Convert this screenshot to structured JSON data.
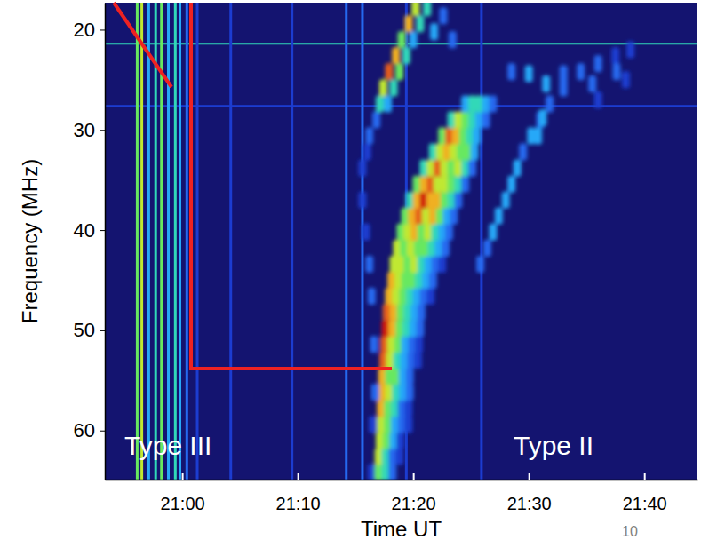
{
  "chart_data": {
    "type": "heatmap",
    "x_label": "Time UT",
    "y_label": "Frequency (MHz)",
    "xlim": [
      -6.7,
      44.6
    ],
    "xticks": [
      {
        "value": 0,
        "label": "21:00"
      },
      {
        "value": 10,
        "label": "21:10"
      },
      {
        "value": 20,
        "label": "21:20"
      },
      {
        "value": 30,
        "label": "21:30"
      },
      {
        "value": 40,
        "label": "21:40"
      }
    ],
    "ylim": [
      64.9,
      17.3
    ],
    "yticks": [
      20,
      30,
      40,
      50,
      60
    ],
    "color_range": [
      0,
      10
    ],
    "horizontal_lines": [
      [
        21.4,
        5
      ],
      [
        27.6,
        2
      ]
    ],
    "vertical_bursts": [
      [
        -3.9,
        6
      ],
      [
        -3.5,
        7
      ],
      [
        -2.9,
        4
      ],
      [
        -2.3,
        5
      ],
      [
        -1.8,
        6
      ],
      [
        -1.2,
        4
      ],
      [
        -0.6,
        5
      ],
      [
        -0.2,
        4
      ],
      [
        0.4,
        3
      ],
      [
        1.3,
        2
      ],
      [
        4.2,
        2
      ],
      [
        9.5,
        2
      ],
      [
        14.2,
        3
      ],
      [
        15.6,
        3
      ],
      [
        19.4,
        2
      ],
      [
        25.9,
        2
      ]
    ],
    "cells": [
      [
        16.4,
        64.2,
        2
      ],
      [
        17.0,
        64.2,
        6
      ],
      [
        17.6,
        64.2,
        5
      ],
      [
        18.2,
        64.2,
        3
      ],
      [
        17.0,
        62.6,
        7
      ],
      [
        17.6,
        62.6,
        5
      ],
      [
        18.2,
        62.6,
        3
      ],
      [
        18.8,
        62.6,
        2
      ],
      [
        17.1,
        61.0,
        7
      ],
      [
        17.7,
        61.0,
        6
      ],
      [
        18.3,
        61.0,
        4
      ],
      [
        18.9,
        61.0,
        2
      ],
      [
        17.2,
        59.4,
        7
      ],
      [
        17.8,
        59.4,
        6
      ],
      [
        18.4,
        59.4,
        4
      ],
      [
        19.0,
        59.4,
        3
      ],
      [
        19.6,
        59.4,
        2
      ],
      [
        17.2,
        57.8,
        8
      ],
      [
        17.8,
        57.8,
        6
      ],
      [
        18.4,
        57.8,
        5
      ],
      [
        19.0,
        57.8,
        3
      ],
      [
        19.6,
        57.8,
        2
      ],
      [
        17.3,
        56.2,
        8
      ],
      [
        17.9,
        56.2,
        7
      ],
      [
        18.5,
        56.2,
        5
      ],
      [
        19.1,
        56.2,
        4
      ],
      [
        19.7,
        56.2,
        3
      ],
      [
        17.3,
        54.6,
        8
      ],
      [
        17.9,
        54.6,
        6
      ],
      [
        18.5,
        54.6,
        6
      ],
      [
        19.1,
        54.6,
        4
      ],
      [
        19.7,
        54.6,
        3
      ],
      [
        17.4,
        53.0,
        9
      ],
      [
        18.0,
        53.0,
        7
      ],
      [
        18.6,
        53.0,
        5
      ],
      [
        19.2,
        53.0,
        4
      ],
      [
        19.8,
        53.0,
        3
      ],
      [
        20.4,
        53.0,
        2
      ],
      [
        17.5,
        51.4,
        9
      ],
      [
        18.1,
        51.4,
        7
      ],
      [
        18.7,
        51.4,
        6
      ],
      [
        19.3,
        51.4,
        4
      ],
      [
        19.9,
        51.4,
        3
      ],
      [
        20.5,
        51.4,
        2
      ],
      [
        17.6,
        49.8,
        10
      ],
      [
        18.2,
        49.8,
        8
      ],
      [
        18.8,
        49.8,
        6
      ],
      [
        19.4,
        49.8,
        5
      ],
      [
        20.0,
        49.8,
        4
      ],
      [
        20.6,
        49.8,
        3
      ],
      [
        17.7,
        48.2,
        9
      ],
      [
        18.3,
        48.2,
        8
      ],
      [
        18.9,
        48.2,
        6
      ],
      [
        19.5,
        48.2,
        5
      ],
      [
        20.1,
        48.2,
        4
      ],
      [
        20.7,
        48.2,
        3
      ],
      [
        17.9,
        46.6,
        8
      ],
      [
        18.5,
        46.6,
        7
      ],
      [
        19.1,
        46.6,
        6
      ],
      [
        19.7,
        46.6,
        5
      ],
      [
        20.3,
        46.6,
        4
      ],
      [
        20.9,
        46.6,
        3
      ],
      [
        21.5,
        46.6,
        2
      ],
      [
        18.1,
        45.0,
        8
      ],
      [
        18.7,
        45.0,
        7
      ],
      [
        19.3,
        45.0,
        6
      ],
      [
        19.9,
        45.0,
        6
      ],
      [
        20.5,
        45.0,
        5
      ],
      [
        21.1,
        45.0,
        4
      ],
      [
        21.7,
        45.0,
        3
      ],
      [
        18.3,
        43.4,
        7
      ],
      [
        18.9,
        43.4,
        7
      ],
      [
        19.5,
        43.4,
        6
      ],
      [
        20.1,
        43.4,
        7
      ],
      [
        20.7,
        43.4,
        5
      ],
      [
        21.3,
        43.4,
        4
      ],
      [
        21.9,
        43.4,
        3
      ],
      [
        22.5,
        43.4,
        2
      ],
      [
        18.6,
        41.8,
        7
      ],
      [
        19.2,
        41.8,
        6
      ],
      [
        19.8,
        41.8,
        7
      ],
      [
        20.4,
        41.8,
        6
      ],
      [
        21.0,
        41.8,
        6
      ],
      [
        21.6,
        41.8,
        5
      ],
      [
        22.2,
        41.8,
        4
      ],
      [
        22.8,
        41.8,
        3
      ],
      [
        18.9,
        40.2,
        6
      ],
      [
        19.5,
        40.2,
        7
      ],
      [
        20.1,
        40.2,
        8
      ],
      [
        20.7,
        40.2,
        6
      ],
      [
        21.3,
        40.2,
        7
      ],
      [
        21.9,
        40.2,
        5
      ],
      [
        22.5,
        40.2,
        4
      ],
      [
        23.1,
        40.2,
        3
      ],
      [
        19.3,
        38.6,
        6
      ],
      [
        19.9,
        38.6,
        8
      ],
      [
        20.5,
        38.6,
        9
      ],
      [
        21.1,
        38.6,
        7
      ],
      [
        21.7,
        38.6,
        8
      ],
      [
        22.3,
        38.6,
        6
      ],
      [
        22.9,
        38.6,
        4
      ],
      [
        23.5,
        38.6,
        3
      ],
      [
        19.7,
        37.0,
        5
      ],
      [
        20.3,
        37.0,
        8
      ],
      [
        20.9,
        37.0,
        10
      ],
      [
        21.5,
        37.0,
        8
      ],
      [
        22.1,
        37.0,
        8
      ],
      [
        22.7,
        37.0,
        6
      ],
      [
        23.3,
        37.0,
        5
      ],
      [
        23.9,
        37.0,
        3
      ],
      [
        20.3,
        35.4,
        6
      ],
      [
        20.9,
        35.4,
        8
      ],
      [
        21.5,
        35.4,
        9
      ],
      [
        22.1,
        35.4,
        7
      ],
      [
        22.7,
        35.4,
        7
      ],
      [
        23.3,
        35.4,
        6
      ],
      [
        23.9,
        35.4,
        5
      ],
      [
        24.5,
        35.4,
        3
      ],
      [
        20.9,
        33.8,
        5
      ],
      [
        21.5,
        33.8,
        7
      ],
      [
        22.1,
        33.8,
        9
      ],
      [
        22.7,
        33.8,
        7
      ],
      [
        23.3,
        33.8,
        6
      ],
      [
        23.9,
        33.8,
        7
      ],
      [
        24.5,
        33.8,
        5
      ],
      [
        25.1,
        33.8,
        3
      ],
      [
        21.7,
        32.2,
        5
      ],
      [
        22.3,
        32.2,
        7
      ],
      [
        22.9,
        32.2,
        8
      ],
      [
        23.5,
        32.2,
        7
      ],
      [
        24.1,
        32.2,
        6
      ],
      [
        24.7,
        32.2,
        6
      ],
      [
        25.3,
        32.2,
        4
      ],
      [
        22.5,
        30.6,
        6
      ],
      [
        23.1,
        30.6,
        9
      ],
      [
        23.7,
        30.6,
        8
      ],
      [
        24.3,
        30.6,
        6
      ],
      [
        24.9,
        30.6,
        5
      ],
      [
        25.5,
        30.6,
        4
      ],
      [
        23.3,
        29.0,
        5
      ],
      [
        23.9,
        29.0,
        7
      ],
      [
        24.5,
        29.0,
        6
      ],
      [
        25.1,
        29.0,
        5
      ],
      [
        25.7,
        29.0,
        4
      ],
      [
        26.3,
        29.0,
        3
      ],
      [
        24.5,
        27.4,
        4
      ],
      [
        25.1,
        27.4,
        5
      ],
      [
        25.7,
        27.4,
        5
      ],
      [
        26.3,
        27.4,
        4
      ],
      [
        26.9,
        27.4,
        3
      ],
      [
        25.8,
        43.4,
        3
      ],
      [
        26.4,
        41.8,
        3
      ],
      [
        26.9,
        40.2,
        4
      ],
      [
        27.4,
        38.6,
        4
      ],
      [
        28.0,
        37.0,
        4
      ],
      [
        28.5,
        35.4,
        4
      ],
      [
        29.0,
        33.8,
        4
      ],
      [
        29.5,
        32.2,
        3
      ],
      [
        30.2,
        30.6,
        4
      ],
      [
        31.0,
        29.0,
        3
      ],
      [
        31.8,
        27.4,
        3
      ],
      [
        33.0,
        25.8,
        3
      ],
      [
        34.5,
        24.2,
        3
      ],
      [
        36.0,
        23.4,
        3
      ],
      [
        37.5,
        22.6,
        2
      ],
      [
        38.8,
        22.0,
        2
      ],
      [
        30.8,
        30.6,
        4
      ],
      [
        31.2,
        28.8,
        4
      ],
      [
        28.5,
        24.2,
        3
      ],
      [
        30.0,
        24.4,
        4
      ],
      [
        31.5,
        25.4,
        4
      ],
      [
        33.0,
        24.4,
        3
      ],
      [
        35.5,
        25.4,
        3
      ],
      [
        37.6,
        24.2,
        3
      ],
      [
        38.4,
        25.0,
        2
      ],
      [
        36.0,
        27.0,
        2
      ],
      [
        16.8,
        29.0,
        3
      ],
      [
        17.1,
        27.4,
        5
      ],
      [
        17.4,
        25.8,
        7
      ],
      [
        17.9,
        24.2,
        9
      ],
      [
        18.5,
        22.6,
        8
      ],
      [
        19.0,
        21.0,
        6
      ],
      [
        19.6,
        19.4,
        8
      ],
      [
        20.2,
        17.8,
        7
      ],
      [
        17.8,
        27.4,
        4
      ],
      [
        18.3,
        25.8,
        5
      ],
      [
        18.8,
        24.2,
        6
      ],
      [
        19.4,
        22.6,
        5
      ],
      [
        20.0,
        21.0,
        4
      ],
      [
        20.6,
        19.4,
        5
      ],
      [
        21.2,
        17.8,
        5
      ],
      [
        16.2,
        30.6,
        3
      ],
      [
        16.0,
        32.2,
        2
      ],
      [
        15.6,
        33.8,
        2
      ],
      [
        16.4,
        46.6,
        3
      ],
      [
        16.2,
        43.4,
        3
      ],
      [
        15.9,
        40.2,
        2
      ],
      [
        15.6,
        37.0,
        2
      ],
      [
        16.6,
        51.4,
        3
      ],
      [
        16.7,
        56.2,
        3
      ],
      [
        16.5,
        59.4,
        2
      ],
      [
        21.8,
        20.2,
        4
      ],
      [
        22.6,
        18.6,
        3
      ],
      [
        23.4,
        21.0,
        3
      ]
    ],
    "annotations": [
      {
        "text": "Type III"
      },
      {
        "text": "Type II"
      },
      {
        "text": "10"
      }
    ]
  }
}
